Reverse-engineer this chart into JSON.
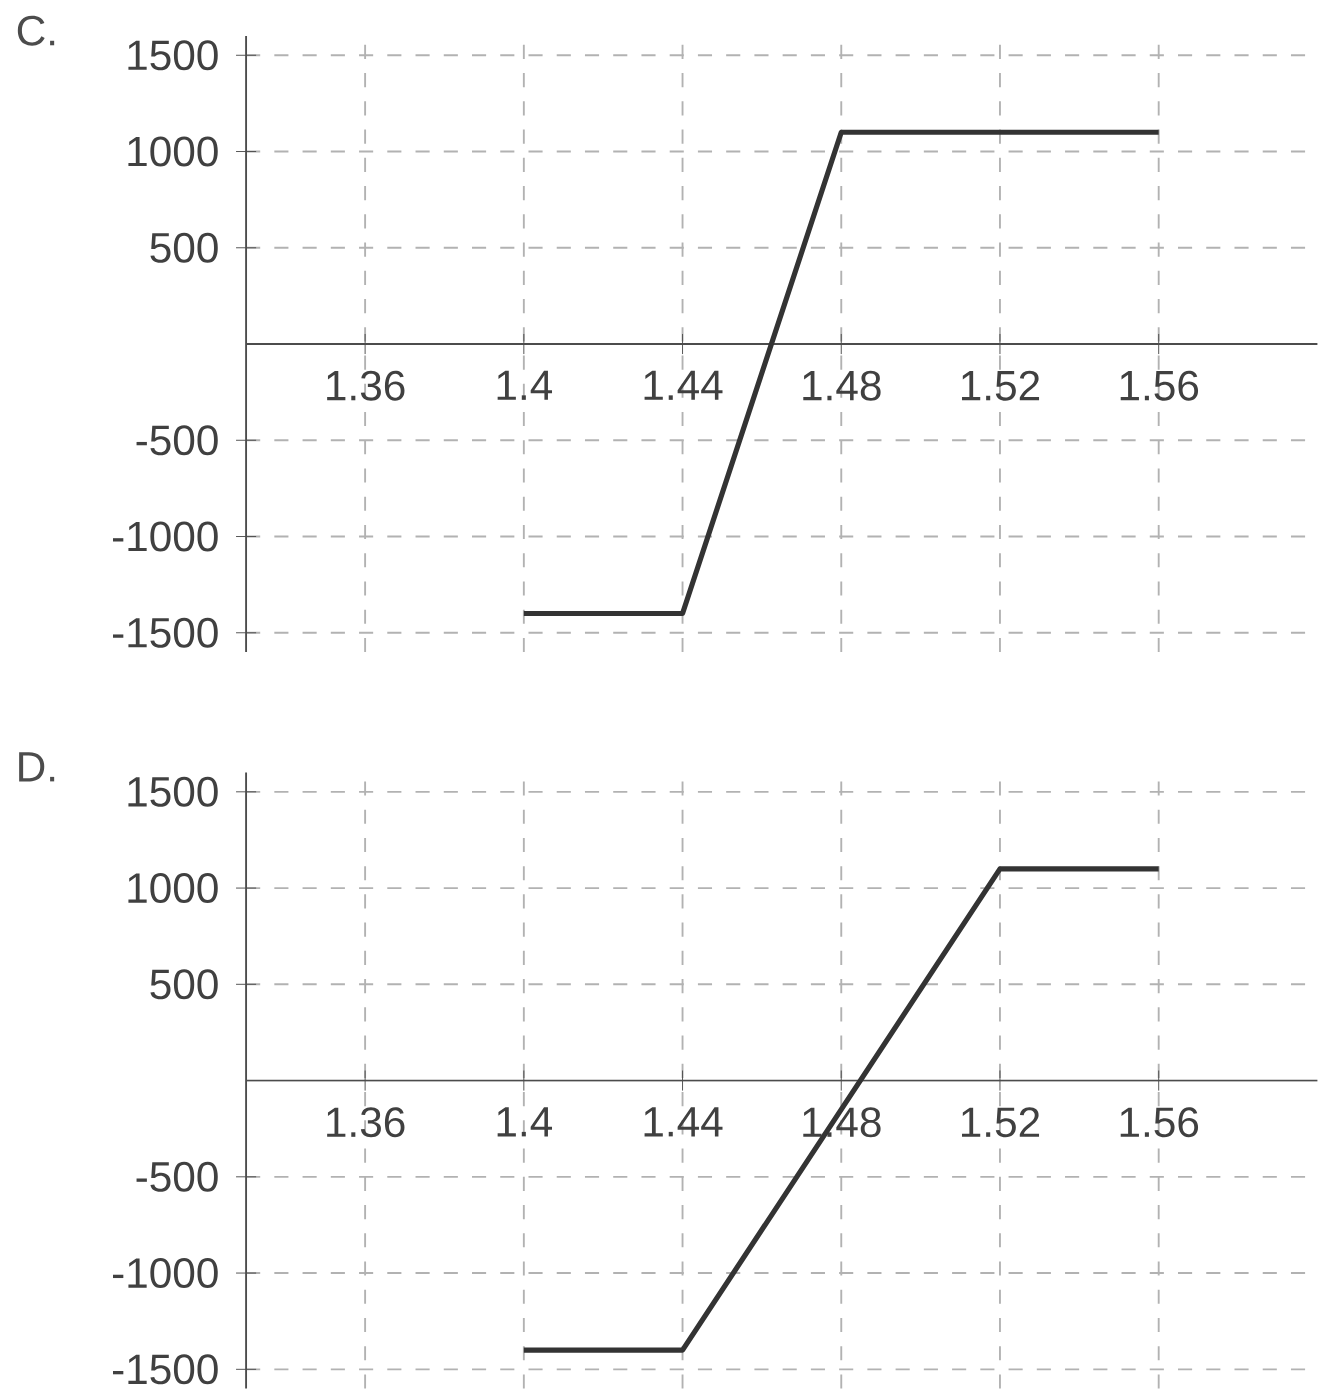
{
  "chart_data": [
    {
      "type": "line",
      "title": "C.",
      "x": [
        1.4,
        1.44,
        1.48,
        1.56
      ],
      "values": [
        -1400,
        -1400,
        1100,
        1100
      ],
      "color": "#333333",
      "xlim": [
        1.33,
        1.6
      ],
      "ylim": [
        -1600,
        1600
      ],
      "xticks": [
        1.36,
        1.4,
        1.44,
        1.48,
        1.52,
        1.56
      ],
      "yticks": [
        -1500,
        -1000,
        -500,
        500,
        1000,
        1500
      ],
      "grid": true,
      "marker": "none",
      "line_style": "solid"
    },
    {
      "type": "line",
      "title": "D.",
      "x": [
        1.4,
        1.44,
        1.52,
        1.56
      ],
      "values": [
        -1400,
        -1400,
        1100,
        1100
      ],
      "color": "#333333",
      "xlim": [
        1.33,
        1.6
      ],
      "ylim": [
        -1600,
        1600
      ],
      "xticks": [
        1.36,
        1.4,
        1.44,
        1.48,
        1.52,
        1.56
      ],
      "yticks": [
        -1500,
        -1000,
        -500,
        500,
        1000,
        1500
      ],
      "grid": true,
      "marker": "none",
      "line_style": "solid"
    }
  ]
}
